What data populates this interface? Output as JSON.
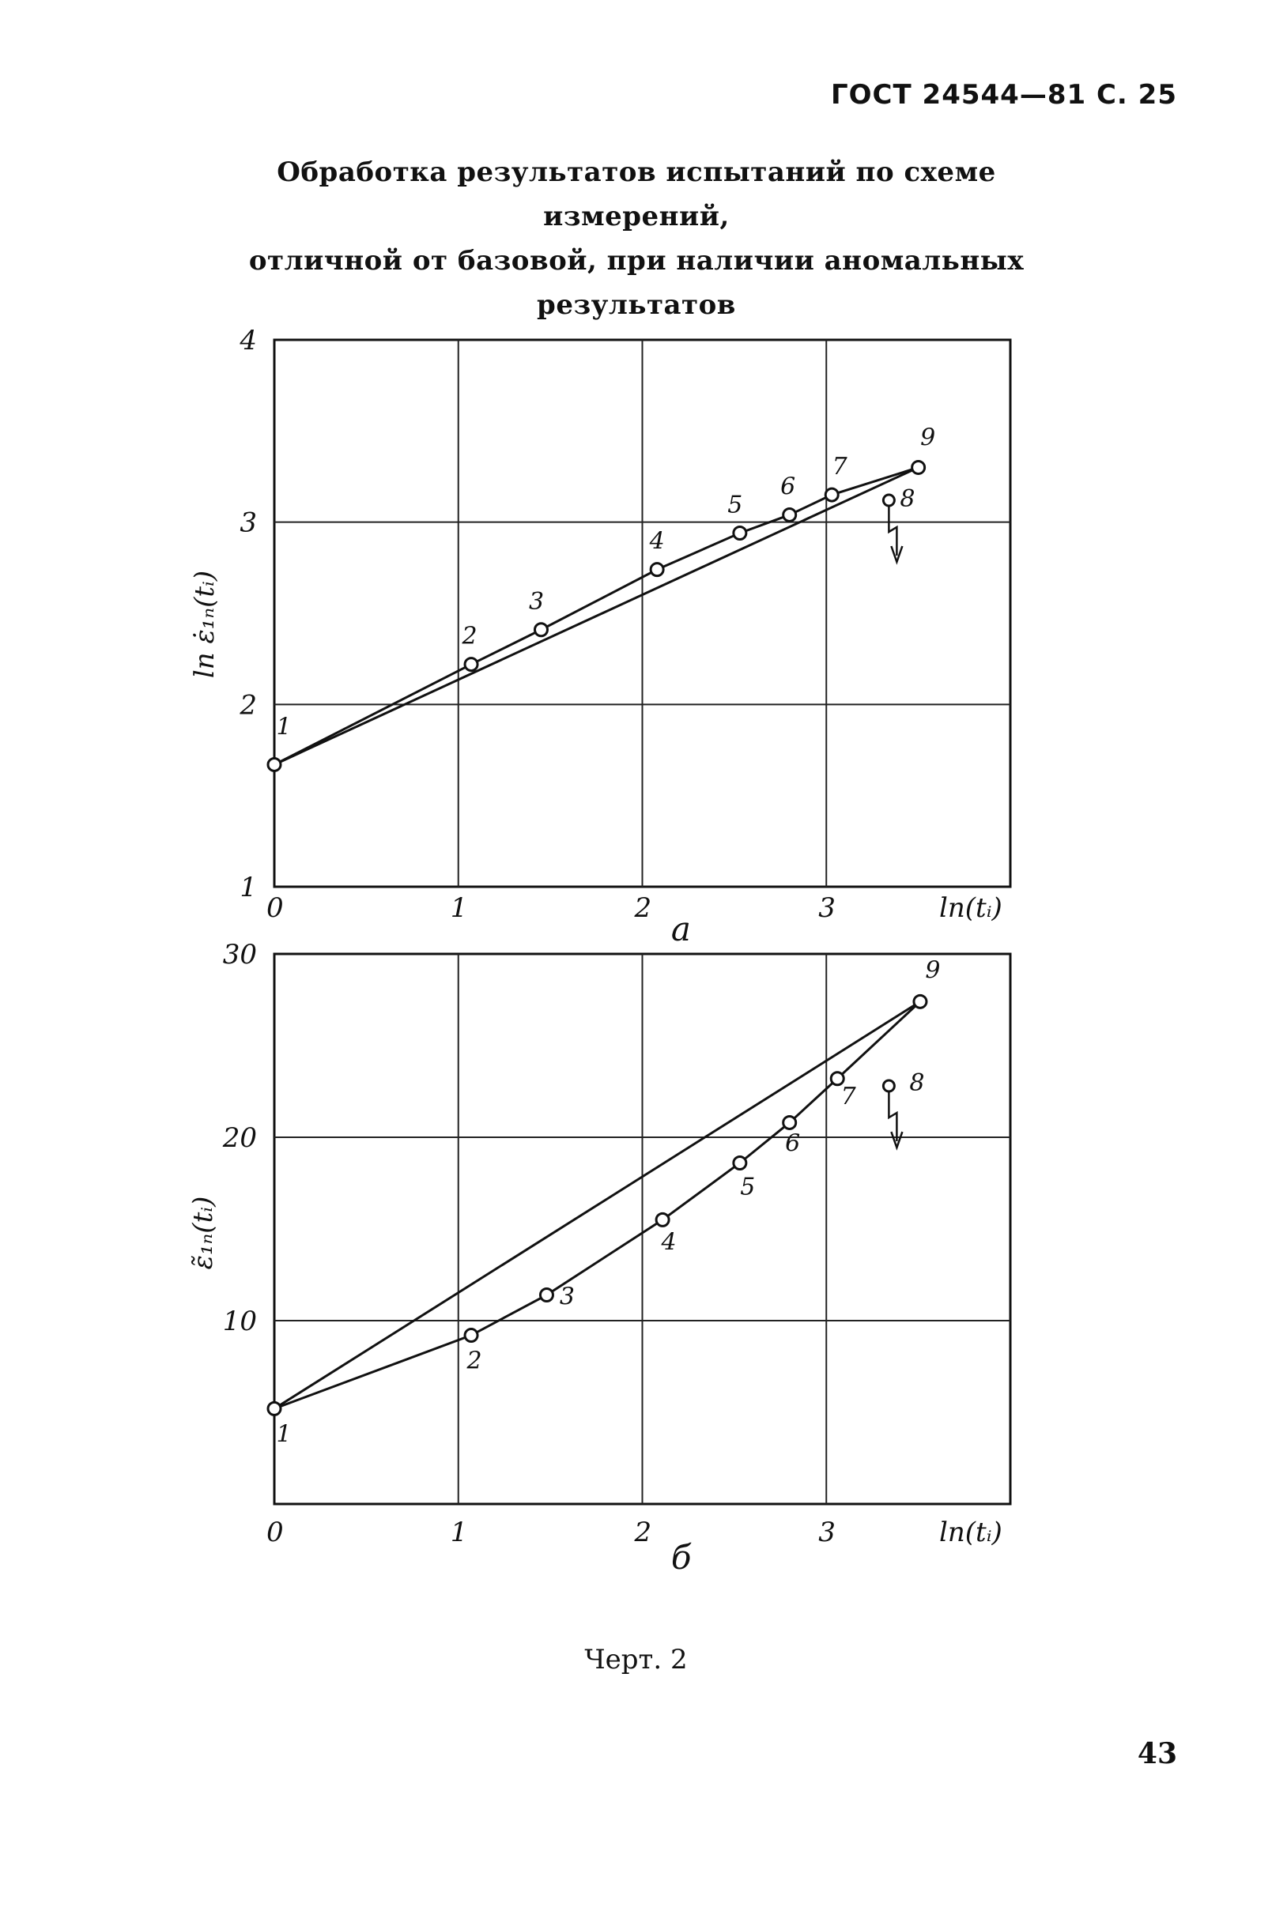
{
  "header": "ГОСТ 24544—81 С. 25",
  "title_lines": [
    "Обработка результатов испытаний по схеме измерений,",
    "отличной от базовой, при наличии аномальных",
    "результатов"
  ],
  "caption": "Черт. 2",
  "page_number": "43",
  "chart_data": [
    {
      "type": "line",
      "panel_label": "а",
      "xlabel": "ln(tᵢ)",
      "ylabel": "ln ε̇₁ₙ(tᵢ)",
      "xlim": [
        0,
        4
      ],
      "ylim": [
        1,
        4
      ],
      "xticks": [
        "0",
        "1",
        "2",
        "3"
      ],
      "yticks": [
        "1",
        "2",
        "3",
        "4"
      ],
      "grid": true,
      "points": [
        {
          "label": "1",
          "x": 0.0,
          "y": 1.67
        },
        {
          "label": "2",
          "x": 1.07,
          "y": 2.22
        },
        {
          "label": "3",
          "x": 1.45,
          "y": 2.41
        },
        {
          "label": "4",
          "x": 2.08,
          "y": 2.74
        },
        {
          "label": "5",
          "x": 2.53,
          "y": 2.94
        },
        {
          "label": "6",
          "x": 2.8,
          "y": 3.04
        },
        {
          "label": "7",
          "x": 3.03,
          "y": 3.15
        },
        {
          "label": "9",
          "x": 3.5,
          "y": 3.3
        }
      ],
      "anomalous_point": {
        "label": "8",
        "x": 3.34,
        "y": 3.12
      },
      "fit_line": {
        "x": [
          0.0,
          3.5
        ],
        "y": [
          1.67,
          3.3
        ]
      }
    },
    {
      "type": "line",
      "panel_label": "б",
      "xlabel": "ln(tᵢ)",
      "ylabel": "ε̃₁ₙ(tᵢ)",
      "xlim": [
        0,
        4
      ],
      "ylim": [
        0,
        30
      ],
      "xticks": [
        "0",
        "1",
        "2",
        "3"
      ],
      "yticks": [
        "10",
        "20",
        "30"
      ],
      "grid": true,
      "points": [
        {
          "label": "1",
          "x": 0.0,
          "y": 5.2
        },
        {
          "label": "2",
          "x": 1.07,
          "y": 9.2
        },
        {
          "label": "3",
          "x": 1.48,
          "y": 11.4
        },
        {
          "label": "4",
          "x": 2.11,
          "y": 15.5
        },
        {
          "label": "5",
          "x": 2.53,
          "y": 18.6
        },
        {
          "label": "6",
          "x": 2.8,
          "y": 20.8
        },
        {
          "label": "7",
          "x": 3.06,
          "y": 23.2
        },
        {
          "label": "9",
          "x": 3.51,
          "y": 27.4
        }
      ],
      "anomalous_point": {
        "label": "8",
        "x": 3.34,
        "y": 22.8
      },
      "fit_line": {
        "x": [
          0.0,
          3.51
        ],
        "y": [
          5.2,
          27.4
        ]
      }
    }
  ]
}
